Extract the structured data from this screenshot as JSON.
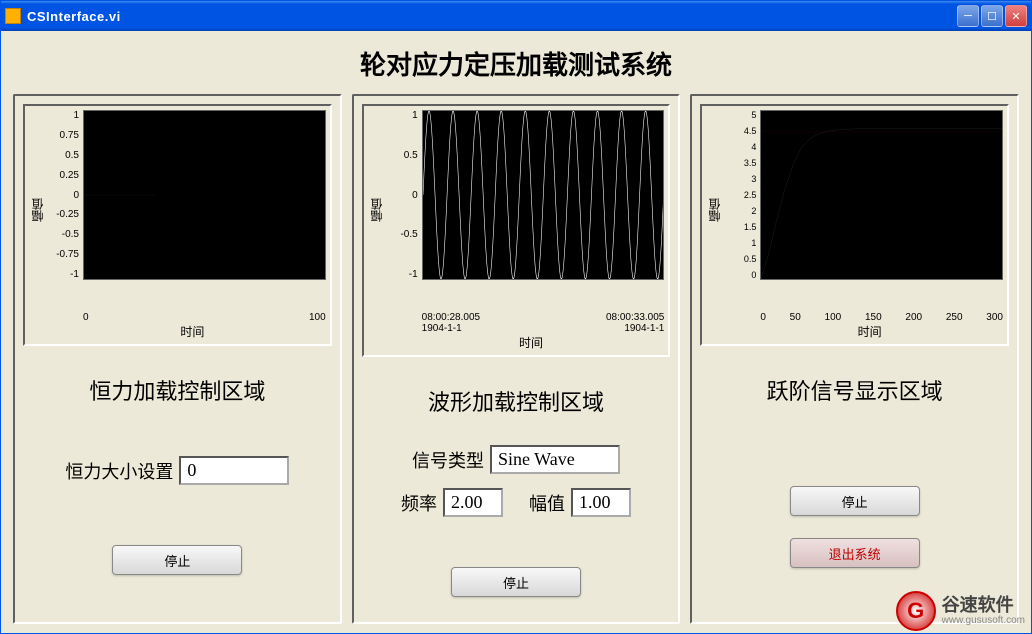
{
  "window": {
    "title": "CSInterface.vi"
  },
  "main_title": "轮对应力定压加载测试系统",
  "panels": {
    "left": {
      "section_title": "恒力加载控制区域",
      "force_label": "恒力大小设置",
      "force_value": "0",
      "stop_label": "停止",
      "chart": {
        "ylabel": "幅值",
        "xlabel": "时间",
        "yticks": [
          "1",
          "0.75",
          "0.5",
          "0.25",
          "0",
          "-0.25",
          "-0.5",
          "-0.75",
          "-1"
        ],
        "xticks": [
          "0",
          "100"
        ],
        "bg": "#000000",
        "line_color": "#ffffff",
        "ylim": [
          -1,
          1
        ],
        "xlim": [
          0,
          100
        ],
        "flatline_y": 0,
        "flatline_xend": 30
      }
    },
    "middle": {
      "section_title": "波形加载控制区域",
      "signal_type_label": "信号类型",
      "signal_type_value": "Sine Wave",
      "freq_label": "频率",
      "freq_value": "2.00",
      "amp_label": "幅值",
      "amp_value": "1.00",
      "stop_label": "停止",
      "chart": {
        "ylabel": "幅值",
        "xlabel": "时间",
        "yticks": [
          "1",
          "0.5",
          "0",
          "-0.5",
          "-1"
        ],
        "xticks_left_top": "08:00:28.005",
        "xticks_left_bot": "1904-1-1",
        "xticks_right_top": "08:00:33.005",
        "xticks_right_bot": "1904-1-1",
        "bg": "#000000",
        "line_color": "#ffffff",
        "ylim": [
          -1,
          1
        ],
        "sine_cycles": 10,
        "sine_amp": 1.0
      }
    },
    "right": {
      "section_title": "跃阶信号显示区域",
      "stop_label": "停止",
      "exit_label": "退出系统",
      "chart": {
        "ylabel": "幅值",
        "xlabel": "时间",
        "yticks": [
          "5",
          "4.5",
          "4",
          "3.5",
          "3",
          "2.5",
          "2",
          "1.5",
          "1",
          "0.5",
          "0"
        ],
        "xticks": [
          "0",
          "50",
          "100",
          "150",
          "200",
          "250",
          "300"
        ],
        "bg": "#000000",
        "grid_color": "#006000",
        "line_color": "#ffffff",
        "setpoint_color": "#ff0000",
        "ylim": [
          0,
          5
        ],
        "xlim": [
          0,
          300
        ],
        "setpoint_y": 4.4,
        "step_points": [
          [
            0,
            0
          ],
          [
            10,
            0.8
          ],
          [
            20,
            1.8
          ],
          [
            30,
            2.7
          ],
          [
            40,
            3.4
          ],
          [
            50,
            3.9
          ],
          [
            60,
            4.15
          ],
          [
            70,
            4.3
          ],
          [
            80,
            4.38
          ],
          [
            90,
            4.42
          ],
          [
            100,
            4.45
          ],
          [
            120,
            4.47
          ],
          [
            150,
            4.48
          ],
          [
            200,
            4.48
          ],
          [
            250,
            4.48
          ],
          [
            300,
            4.48
          ]
        ]
      }
    }
  },
  "watermark": {
    "cn": "谷速软件",
    "en": "www.gususoft.com"
  }
}
